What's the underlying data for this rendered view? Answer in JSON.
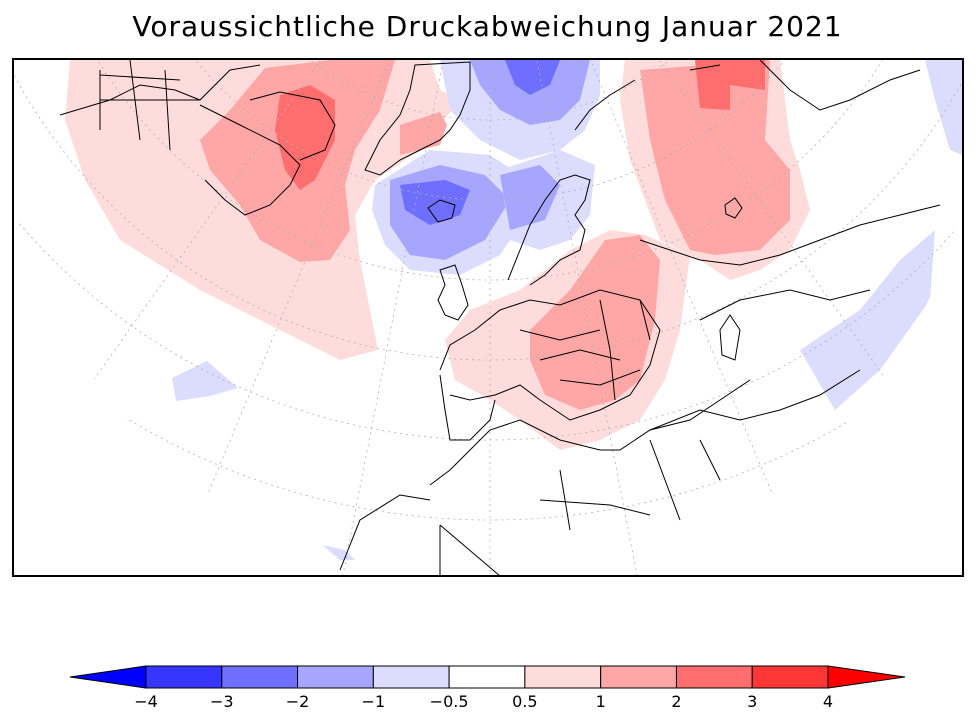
{
  "title": "Voraussichtliche Druckabweichung Januar 2021",
  "map": {
    "projection": "polar stereographic (North Atlantic / Europe sector)",
    "variable": "pressure anomaly",
    "regions": [
      {
        "name": "north-america-positive-anomaly",
        "level": "0.5 to 1"
      },
      {
        "name": "canada-hudson-bay-anomaly",
        "level": "1 to 2"
      },
      {
        "name": "labrador-baffin-maximum",
        "level": "2 to 3"
      },
      {
        "name": "iceland-low",
        "level": "-2 to -1"
      },
      {
        "name": "iceland-low-core",
        "level": "-3 to -2"
      },
      {
        "name": "arctic-low",
        "level": "-3 to -2"
      },
      {
        "name": "central-europe-high",
        "level": "1 to 2"
      },
      {
        "name": "siberia-high",
        "level": "1 to 2"
      },
      {
        "name": "siberia-high-core",
        "level": "2 to 3"
      },
      {
        "name": "east-asia-negative",
        "level": "-1 to -0.5"
      }
    ]
  },
  "colorbar": {
    "levels": [
      "-4",
      "-3",
      "-2",
      "-1",
      "-0.5",
      "0.5",
      "1",
      "2",
      "3",
      "4"
    ],
    "colors": [
      "#0000ff",
      "#3636ff",
      "#6e6eff",
      "#a6a6ff",
      "#dcdcff",
      "#ffffff",
      "#ffdcdc",
      "#ffa6a6",
      "#ff6e6e",
      "#ff3636",
      "#ff0000"
    ]
  },
  "chart_data": {
    "type": "heatmap",
    "title": "Voraussichtliche Druckabweichung Januar 2021",
    "legend_levels": [
      -4,
      -3,
      -2,
      -1,
      -0.5,
      0.5,
      1,
      2,
      3,
      4
    ],
    "legend_colors": [
      "#0000ff",
      "#3636ff",
      "#6e6eff",
      "#a6a6ff",
      "#dcdcff",
      "#ffffff",
      "#ffdcdc",
      "#ffa6a6",
      "#ff6e6e",
      "#ff3636",
      "#ff0000"
    ],
    "legend_placement": "bottom"
  }
}
